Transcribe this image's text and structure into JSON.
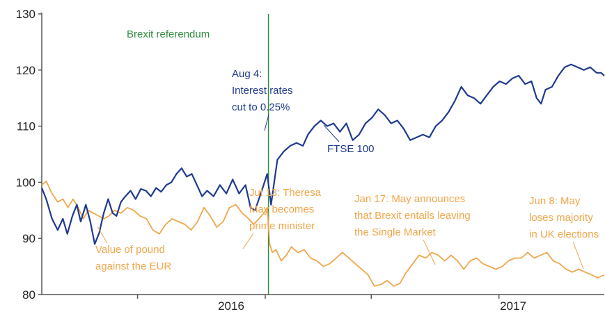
{
  "chart_data": {
    "type": "line",
    "title": "",
    "xlabel": "",
    "ylabel": "",
    "ylim": [
      80,
      130
    ],
    "xlim": [
      "2015-01-16",
      "2017-06-15"
    ],
    "y_ticks": [
      80,
      90,
      100,
      110,
      120,
      130
    ],
    "x_tick_labels": [
      "2016",
      "2017"
    ],
    "x_minor_ticks": [
      "2015-06-15",
      "2016-01-01",
      "2016-06-15",
      "2017-01-01"
    ],
    "grid": false,
    "colors": {
      "ftse": "#1f3a8f",
      "pound": "#f0a64a",
      "referendum": "#2e8b3e",
      "axis": "#555555"
    },
    "series": [
      {
        "name": "FTSE 100",
        "points": [
          [
            "2015-01-16",
            99.0
          ],
          [
            "2015-01-23",
            97.0
          ],
          [
            "2015-02-01",
            93.5
          ],
          [
            "2015-02-10",
            91.5
          ],
          [
            "2015-02-18",
            93.5
          ],
          [
            "2015-02-25",
            90.8
          ],
          [
            "2015-03-05",
            94.0
          ],
          [
            "2015-03-12",
            96.0
          ],
          [
            "2015-03-18",
            93.0
          ],
          [
            "2015-03-26",
            96.0
          ],
          [
            "2015-04-02",
            93.0
          ],
          [
            "2015-04-09",
            89.0
          ],
          [
            "2015-04-16",
            91.0
          ],
          [
            "2015-04-23",
            94.5
          ],
          [
            "2015-04-30",
            97.0
          ],
          [
            "2015-05-07",
            94.5
          ],
          [
            "2015-05-13",
            94.0
          ],
          [
            "2015-05-20",
            96.5
          ],
          [
            "2015-05-27",
            97.5
          ],
          [
            "2015-06-04",
            98.5
          ],
          [
            "2015-06-12",
            97.0
          ],
          [
            "2015-06-20",
            98.8
          ],
          [
            "2015-06-28",
            98.5
          ],
          [
            "2015-07-06",
            97.5
          ],
          [
            "2015-07-14",
            99.0
          ],
          [
            "2015-07-22",
            98.3
          ],
          [
            "2015-07-30",
            99.5
          ],
          [
            "2015-08-07",
            100.0
          ],
          [
            "2015-08-15",
            101.5
          ],
          [
            "2015-08-23",
            102.5
          ],
          [
            "2015-08-31",
            101.0
          ],
          [
            "2015-09-08",
            101.5
          ],
          [
            "2015-09-16",
            99.5
          ],
          [
            "2015-09-24",
            97.5
          ],
          [
            "2015-10-02",
            98.5
          ],
          [
            "2015-10-12",
            97.5
          ],
          [
            "2015-10-22",
            99.5
          ],
          [
            "2015-11-01",
            98.0
          ],
          [
            "2015-11-11",
            100.5
          ],
          [
            "2015-11-21",
            98.0
          ],
          [
            "2015-12-01",
            99.5
          ],
          [
            "2015-12-09",
            95.5
          ],
          [
            "2015-12-16",
            95.0
          ],
          [
            "2015-12-22",
            97.0
          ],
          [
            "2015-12-28",
            99.0
          ],
          [
            "2016-01-04",
            101.5
          ],
          [
            "2016-01-10",
            96.0
          ],
          [
            "2016-01-20",
            104.0
          ],
          [
            "2016-01-30",
            105.5
          ],
          [
            "2016-02-09",
            106.5
          ],
          [
            "2016-02-19",
            107.0
          ],
          [
            "2016-02-29",
            106.5
          ],
          [
            "2016-03-08",
            108.5
          ],
          [
            "2016-03-18",
            110.0
          ],
          [
            "2016-03-28",
            111.0
          ],
          [
            "2016-04-07",
            110.0
          ],
          [
            "2016-04-17",
            110.5
          ],
          [
            "2016-04-27",
            109.0
          ],
          [
            "2016-05-07",
            110.5
          ],
          [
            "2016-05-17",
            107.5
          ],
          [
            "2016-05-27",
            108.5
          ],
          [
            "2016-06-06",
            110.5
          ],
          [
            "2016-06-16",
            111.5
          ],
          [
            "2016-06-26",
            113.0
          ],
          [
            "2016-07-06",
            112.0
          ],
          [
            "2016-07-16",
            110.5
          ],
          [
            "2016-07-26",
            111.0
          ],
          [
            "2016-08-05",
            109.5
          ],
          [
            "2016-08-15",
            107.5
          ],
          [
            "2016-08-25",
            108.0
          ],
          [
            "2016-09-04",
            108.5
          ],
          [
            "2016-09-14",
            108.0
          ],
          [
            "2016-09-24",
            110.0
          ],
          [
            "2016-10-04",
            111.0
          ],
          [
            "2016-10-14",
            112.5
          ],
          [
            "2016-10-24",
            114.5
          ],
          [
            "2016-11-03",
            117.0
          ],
          [
            "2016-11-13",
            115.5
          ],
          [
            "2016-11-23",
            115.0
          ],
          [
            "2016-12-03",
            114.0
          ],
          [
            "2016-12-13",
            115.5
          ],
          [
            "2016-12-23",
            117.0
          ],
          [
            "2017-01-02",
            118.0
          ],
          [
            "2017-01-12",
            117.5
          ],
          [
            "2017-01-22",
            118.5
          ],
          [
            "2017-02-01",
            119.0
          ],
          [
            "2017-02-11",
            117.5
          ],
          [
            "2017-02-21",
            118.0
          ],
          [
            "2017-03-01",
            115.0
          ],
          [
            "2017-03-08",
            114.0
          ],
          [
            "2017-03-15",
            116.5
          ],
          [
            "2017-03-25",
            117.0
          ],
          [
            "2017-04-04",
            119.0
          ],
          [
            "2017-04-14",
            120.5
          ],
          [
            "2017-04-24",
            121.0
          ],
          [
            "2017-05-04",
            120.5
          ],
          [
            "2017-05-14",
            120.0
          ],
          [
            "2017-05-24",
            120.5
          ],
          [
            "2017-06-03",
            119.5
          ],
          [
            "2017-06-10",
            119.5
          ],
          [
            "2017-06-15",
            119.0
          ]
        ]
      },
      {
        "name": "Value of pound against the EUR",
        "points": [
          [
            "2015-01-16",
            99.5
          ],
          [
            "2015-01-23",
            100.2
          ],
          [
            "2015-02-01",
            98.0
          ],
          [
            "2015-02-10",
            96.5
          ],
          [
            "2015-02-18",
            97.0
          ],
          [
            "2015-02-26",
            95.5
          ],
          [
            "2015-03-06",
            97.0
          ],
          [
            "2015-03-14",
            95.5
          ],
          [
            "2015-03-22",
            93.5
          ],
          [
            "2015-03-30",
            95.0
          ],
          [
            "2015-04-07",
            94.5
          ],
          [
            "2015-04-15",
            94.0
          ],
          [
            "2015-04-23",
            93.5
          ],
          [
            "2015-05-01",
            94.0
          ],
          [
            "2015-05-10",
            95.0
          ],
          [
            "2015-05-20",
            94.5
          ],
          [
            "2015-05-30",
            95.5
          ],
          [
            "2015-06-09",
            95.0
          ],
          [
            "2015-06-19",
            94.0
          ],
          [
            "2015-06-29",
            93.5
          ],
          [
            "2015-07-09",
            91.5
          ],
          [
            "2015-07-19",
            90.8
          ],
          [
            "2015-07-29",
            92.5
          ],
          [
            "2015-08-08",
            93.5
          ],
          [
            "2015-08-18",
            93.0
          ],
          [
            "2015-08-28",
            92.5
          ],
          [
            "2015-09-07",
            91.5
          ],
          [
            "2015-09-17",
            93.0
          ],
          [
            "2015-09-27",
            95.5
          ],
          [
            "2015-10-07",
            94.0
          ],
          [
            "2015-10-17",
            92.0
          ],
          [
            "2015-10-27",
            93.0
          ],
          [
            "2015-11-06",
            95.5
          ],
          [
            "2015-11-16",
            96.0
          ],
          [
            "2015-11-26",
            94.5
          ],
          [
            "2015-12-06",
            93.5
          ],
          [
            "2015-12-14",
            92.5
          ],
          [
            "2015-12-22",
            93.5
          ],
          [
            "2015-12-30",
            94.5
          ],
          [
            "2016-01-04",
            95.5
          ],
          [
            "2016-01-08",
            89.0
          ],
          [
            "2016-01-12",
            87.5
          ],
          [
            "2016-01-18",
            88.0
          ],
          [
            "2016-01-26",
            86.0
          ],
          [
            "2016-02-03",
            87.0
          ],
          [
            "2016-02-11",
            88.5
          ],
          [
            "2016-02-21",
            87.5
          ],
          [
            "2016-03-02",
            88.0
          ],
          [
            "2016-03-12",
            86.5
          ],
          [
            "2016-03-22",
            86.0
          ],
          [
            "2016-04-01",
            85.0
          ],
          [
            "2016-04-11",
            85.5
          ],
          [
            "2016-04-21",
            86.5
          ],
          [
            "2016-05-01",
            87.5
          ],
          [
            "2016-05-11",
            86.5
          ],
          [
            "2016-05-21",
            85.5
          ],
          [
            "2016-05-31",
            84.5
          ],
          [
            "2016-06-10",
            83.5
          ],
          [
            "2016-06-20",
            81.5
          ],
          [
            "2016-06-30",
            81.8
          ],
          [
            "2016-07-10",
            82.5
          ],
          [
            "2016-07-20",
            81.5
          ],
          [
            "2016-07-30",
            82.0
          ],
          [
            "2016-08-09",
            84.0
          ],
          [
            "2016-08-19",
            85.5
          ],
          [
            "2016-08-29",
            87.0
          ],
          [
            "2016-09-08",
            86.5
          ],
          [
            "2016-09-18",
            87.5
          ],
          [
            "2016-09-28",
            87.0
          ],
          [
            "2016-10-08",
            86.0
          ],
          [
            "2016-10-18",
            87.0
          ],
          [
            "2016-10-28",
            86.0
          ],
          [
            "2016-11-07",
            84.5
          ],
          [
            "2016-11-17",
            86.0
          ],
          [
            "2016-11-27",
            86.5
          ],
          [
            "2016-12-07",
            85.5
          ],
          [
            "2016-12-17",
            85.0
          ],
          [
            "2016-12-27",
            84.5
          ],
          [
            "2017-01-06",
            85.0
          ],
          [
            "2017-01-16",
            86.0
          ],
          [
            "2017-01-26",
            86.5
          ],
          [
            "2017-02-05",
            86.5
          ],
          [
            "2017-02-15",
            87.5
          ],
          [
            "2017-02-25",
            86.5
          ],
          [
            "2017-03-07",
            87.0
          ],
          [
            "2017-03-17",
            87.5
          ],
          [
            "2017-03-27",
            86.0
          ],
          [
            "2017-04-06",
            85.5
          ],
          [
            "2017-04-16",
            84.5
          ],
          [
            "2017-04-26",
            84.0
          ],
          [
            "2017-05-06",
            84.5
          ],
          [
            "2017-05-16",
            84.0
          ],
          [
            "2017-05-26",
            83.5
          ],
          [
            "2017-06-05",
            83.0
          ],
          [
            "2017-06-15",
            83.5
          ]
        ]
      }
    ],
    "annotations": {
      "referendum": {
        "date": "2016-01-06",
        "label": "Brexit referendum"
      },
      "ftse_label": {
        "text": "FTSE 100"
      },
      "interest_rates": {
        "lines": [
          "Aug 4:",
          "Interest rates",
          "cut to 0.25%"
        ]
      },
      "pound_label": {
        "lines": [
          "Value of pound",
          "against the EUR"
        ]
      },
      "theresa_may": {
        "lines": [
          "Jul 13: Theresa",
          "May becomes",
          "prime minister"
        ]
      },
      "brexit_single_market": {
        "lines": [
          "Jan 17: May announces",
          "that Brexit entails leaving",
          "the Single Market"
        ]
      },
      "uk_elections": {
        "lines": [
          "Jun 8: May",
          "loses majority",
          "in UK elections"
        ]
      }
    }
  }
}
